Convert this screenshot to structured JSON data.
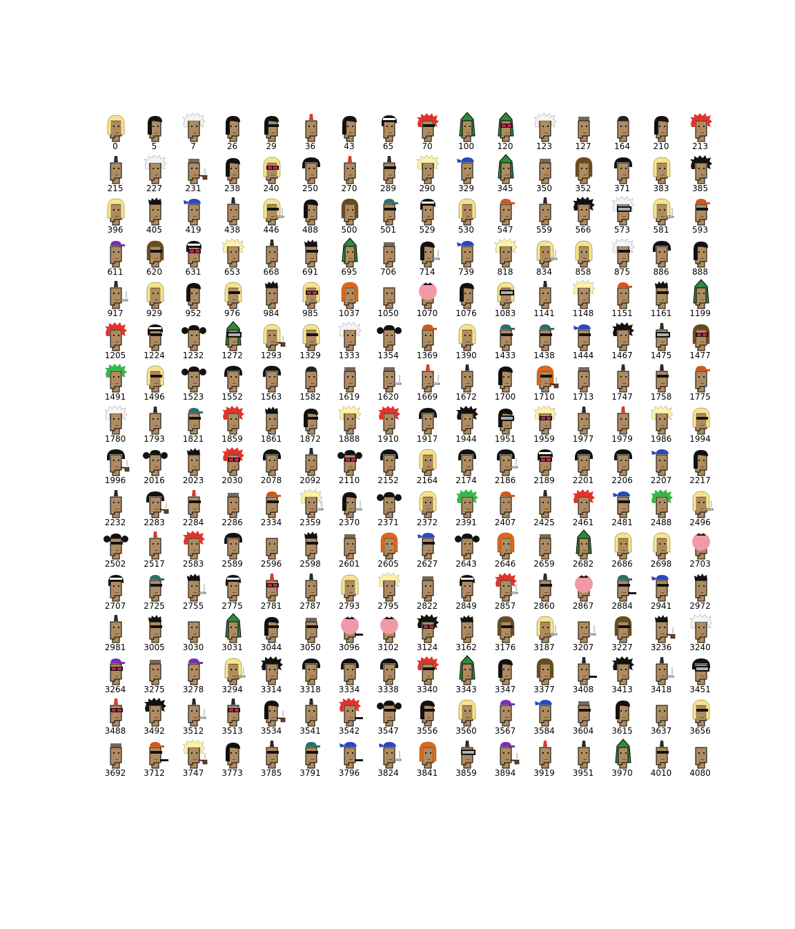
{
  "colors": {
    "skin": "#ae8b61",
    "outline": "#000000"
  },
  "items": [
    {
      "id": "0",
      "hair": "blonde-bob"
    },
    {
      "id": "5",
      "hair": "straight-black"
    },
    {
      "id": "7",
      "hair": "wild-white"
    },
    {
      "id": "26",
      "hair": "straight-black"
    },
    {
      "id": "29",
      "hair": "straight-black",
      "eyes": "shades"
    },
    {
      "id": "36",
      "hair": "mohawk-red"
    },
    {
      "id": "43",
      "hair": "straight-black"
    },
    {
      "id": "65",
      "hair": "black-bandana"
    },
    {
      "id": "70",
      "hair": "crazy-red",
      "eyes": "shades"
    },
    {
      "id": "100",
      "hair": "green-hood"
    },
    {
      "id": "120",
      "hair": "green-hood",
      "eyes": "3d"
    },
    {
      "id": "123",
      "hair": "wild-white"
    },
    {
      "id": "127",
      "hair": "cropped"
    },
    {
      "id": "164",
      "hair": "vr"
    },
    {
      "id": "210",
      "hair": "straight-black"
    },
    {
      "id": "213",
      "hair": "crazy-red"
    },
    {
      "id": "215",
      "hair": "mohawk"
    },
    {
      "id": "227",
      "hair": "wild-white"
    },
    {
      "id": "231",
      "hair": "cropped",
      "mouth": "pipe"
    },
    {
      "id": "238",
      "hair": "straight-black"
    },
    {
      "id": "240",
      "hair": "blonde-bob",
      "eyes": "3d"
    },
    {
      "id": "250",
      "hair": "frumpy-black"
    },
    {
      "id": "270",
      "hair": "mohawk-red"
    },
    {
      "id": "289",
      "hair": "mohawk",
      "eyes": "shades"
    },
    {
      "id": "290",
      "hair": "wild-blonde"
    },
    {
      "id": "329",
      "hair": "blue-bandana"
    },
    {
      "id": "345",
      "hair": "green-hood"
    },
    {
      "id": "350",
      "hair": "cropped"
    },
    {
      "id": "352",
      "hair": "brown-straight"
    },
    {
      "id": "371",
      "hair": "frumpy-black"
    },
    {
      "id": "383",
      "hair": "blonde-bob"
    },
    {
      "id": "385",
      "hair": "crazy-black"
    },
    {
      "id": "396",
      "hair": "blonde-bob"
    },
    {
      "id": "405",
      "hair": "messy-black"
    },
    {
      "id": "419",
      "hair": "blue-bandana"
    },
    {
      "id": "438",
      "hair": "mohawk"
    },
    {
      "id": "446",
      "hair": "blonde-bob",
      "eyes": "shades",
      "mouth": "cig"
    },
    {
      "id": "488",
      "hair": "straight-black"
    },
    {
      "id": "500",
      "hair": "brown-straight"
    },
    {
      "id": "501",
      "hair": "cap",
      "eyes": "shades"
    },
    {
      "id": "529",
      "hair": "black-bandana"
    },
    {
      "id": "530",
      "hair": "blonde-bob"
    },
    {
      "id": "547",
      "hair": "orange-cap"
    },
    {
      "id": "559",
      "hair": "mohawk"
    },
    {
      "id": "566",
      "hair": "crazy-black"
    },
    {
      "id": "573",
      "hair": "wild-white",
      "eyes": "vr"
    },
    {
      "id": "581",
      "hair": "blonde-bob",
      "mouth": "cig"
    },
    {
      "id": "593",
      "hair": "orange-cap",
      "eyes": "shades"
    },
    {
      "id": "611",
      "hair": "purple-cap"
    },
    {
      "id": "620",
      "hair": "brown-straight",
      "eyes": "shades"
    },
    {
      "id": "631",
      "hair": "black-bandana",
      "eyes": "3d"
    },
    {
      "id": "653",
      "hair": "wild-blonde"
    },
    {
      "id": "668",
      "hair": "mohawk"
    },
    {
      "id": "691",
      "hair": "messy-black",
      "eyes": "shades"
    },
    {
      "id": "695",
      "hair": "green-hood"
    },
    {
      "id": "706",
      "hair": "cropped"
    },
    {
      "id": "714",
      "hair": "straight-black",
      "mouth": "cig"
    },
    {
      "id": "739",
      "hair": "blue-bandana"
    },
    {
      "id": "818",
      "hair": "wild-blonde"
    },
    {
      "id": "834",
      "hair": "blonde-bob",
      "mouth": "cig"
    },
    {
      "id": "858",
      "hair": "blonde-bob"
    },
    {
      "id": "875",
      "hair": "wild-white",
      "eyes": "shades"
    },
    {
      "id": "886",
      "hair": "frumpy-black"
    },
    {
      "id": "888",
      "hair": "straight-black"
    },
    {
      "id": "917",
      "hair": "mohawk",
      "mouth": "cig"
    },
    {
      "id": "929",
      "hair": "blonde-bob"
    },
    {
      "id": "952",
      "hair": "straight-black"
    },
    {
      "id": "976",
      "hair": "blonde-bob",
      "eyes": "shades"
    },
    {
      "id": "984",
      "hair": "messy-black"
    },
    {
      "id": "985",
      "hair": "blonde-bob",
      "eyes": "3d"
    },
    {
      "id": "1037",
      "hair": "orange-long"
    },
    {
      "id": "1050",
      "hair": "none"
    },
    {
      "id": "1070",
      "hair": "pink-cap"
    },
    {
      "id": "1076",
      "hair": "straight-black"
    },
    {
      "id": "1083",
      "hair": "blonde-bob",
      "eyes": "vr"
    },
    {
      "id": "1141",
      "hair": "mohawk"
    },
    {
      "id": "1148",
      "hair": "wild-blonde"
    },
    {
      "id": "1151",
      "hair": "orange-cap"
    },
    {
      "id": "1161",
      "hair": "messy-black",
      "eyes": "shades"
    },
    {
      "id": "1199",
      "hair": "green-hood"
    },
    {
      "id": "1205",
      "hair": "crazy-red"
    },
    {
      "id": "1224",
      "hair": "black-bandana",
      "eyes": "shades"
    },
    {
      "id": "1232",
      "hair": "pigtails"
    },
    {
      "id": "1272",
      "hair": "green-hood",
      "eyes": "vr"
    },
    {
      "id": "1293",
      "hair": "blonde-bob",
      "mouth": "pipe"
    },
    {
      "id": "1329",
      "hair": "blonde-bob",
      "eyes": "shades"
    },
    {
      "id": "1333",
      "hair": "wild-white"
    },
    {
      "id": "1354",
      "hair": "pigtails"
    },
    {
      "id": "1369",
      "hair": "orange-cap"
    },
    {
      "id": "1390",
      "hair": "blonde-bob"
    },
    {
      "id": "1433",
      "hair": "cap",
      "eyes": "shades"
    },
    {
      "id": "1438",
      "hair": "cap",
      "eyes": "shades"
    },
    {
      "id": "1444",
      "hair": "blue-bandana",
      "eyes": "shades"
    },
    {
      "id": "1467",
      "hair": "crazy-black"
    },
    {
      "id": "1475",
      "hair": "mohawk",
      "eyes": "vr"
    },
    {
      "id": "1477",
      "hair": "brown-straight",
      "eyes": "3d"
    },
    {
      "id": "1491",
      "hair": "green-afro"
    },
    {
      "id": "1496",
      "hair": "blonde-bob",
      "eyes": "shades"
    },
    {
      "id": "1523",
      "hair": "pigtails"
    },
    {
      "id": "1552",
      "hair": "frumpy-black"
    },
    {
      "id": "1563",
      "hair": "frumpy-black"
    },
    {
      "id": "1582",
      "hair": "vr"
    },
    {
      "id": "1619",
      "hair": "cropped"
    },
    {
      "id": "1620",
      "hair": "cropped",
      "mouth": "cig"
    },
    {
      "id": "1669",
      "hair": "mohawk-red",
      "mouth": "cig"
    },
    {
      "id": "1672",
      "hair": "mohawk"
    },
    {
      "id": "1700",
      "hair": "straight-black"
    },
    {
      "id": "1710",
      "hair": "orange-long",
      "eyes": "shades",
      "mouth": "pipe"
    },
    {
      "id": "1713",
      "hair": "cropped"
    },
    {
      "id": "1747",
      "hair": "mohawk"
    },
    {
      "id": "1758",
      "hair": "mohawk",
      "eyes": "shades"
    },
    {
      "id": "1775",
      "hair": "orange-cap"
    },
    {
      "id": "1780",
      "hair": "wild-white"
    },
    {
      "id": "1793",
      "hair": "mohawk"
    },
    {
      "id": "1821",
      "hair": "cap",
      "eyes": "shades"
    },
    {
      "id": "1859",
      "hair": "crazy-red"
    },
    {
      "id": "1861",
      "hair": "messy-black"
    },
    {
      "id": "1872",
      "hair": "straight-black",
      "eyes": "shades"
    },
    {
      "id": "1888",
      "hair": "wild-blonde"
    },
    {
      "id": "1910",
      "hair": "crazy-red"
    },
    {
      "id": "1917",
      "hair": "frumpy-black"
    },
    {
      "id": "1944",
      "hair": "crazy-black"
    },
    {
      "id": "1951",
      "hair": "straight-black",
      "eyes": "vr"
    },
    {
      "id": "1959",
      "hair": "wild-blonde",
      "eyes": "3d"
    },
    {
      "id": "1977",
      "hair": "mohawk"
    },
    {
      "id": "1979",
      "hair": "mohawk-red"
    },
    {
      "id": "1986",
      "hair": "wild-blonde"
    },
    {
      "id": "1994",
      "hair": "blonde-bob",
      "eyes": "shades"
    },
    {
      "id": "1996",
      "hair": "frumpy-black",
      "mouth": "pipe"
    },
    {
      "id": "2016",
      "hair": "pigtails"
    },
    {
      "id": "2023",
      "hair": "messy-black"
    },
    {
      "id": "2030",
      "hair": "crazy-red",
      "eyes": "3d"
    },
    {
      "id": "2078",
      "hair": "frumpy-black"
    },
    {
      "id": "2092",
      "hair": "mohawk"
    },
    {
      "id": "2110",
      "hair": "pigtails",
      "eyes": "3d"
    },
    {
      "id": "2152",
      "hair": "frumpy-black"
    },
    {
      "id": "2164",
      "hair": "blonde-bob"
    },
    {
      "id": "2174",
      "hair": "frumpy-black"
    },
    {
      "id": "2186",
      "hair": "frumpy-black",
      "mouth": "cig"
    },
    {
      "id": "2189",
      "hair": "black-bandana",
      "eyes": "3d"
    },
    {
      "id": "2201",
      "hair": "frumpy-black"
    },
    {
      "id": "2206",
      "hair": "frumpy-black"
    },
    {
      "id": "2207",
      "hair": "blue-bandana"
    },
    {
      "id": "2217",
      "hair": "straight-black"
    },
    {
      "id": "2232",
      "hair": "mohawk"
    },
    {
      "id": "2283",
      "hair": "frumpy-black",
      "mouth": "pipe"
    },
    {
      "id": "2284",
      "hair": "mohawk-red",
      "eyes": "shades"
    },
    {
      "id": "2286",
      "hair": "cropped"
    },
    {
      "id": "2334",
      "hair": "orange-cap",
      "eyes": "shades"
    },
    {
      "id": "2359",
      "hair": "wild-blonde",
      "mouth": "cig"
    },
    {
      "id": "2370",
      "hair": "straight-black",
      "mouth": "cig"
    },
    {
      "id": "2371",
      "hair": "pigtails"
    },
    {
      "id": "2372",
      "hair": "blonde-bob"
    },
    {
      "id": "2391",
      "hair": "green-afro"
    },
    {
      "id": "2407",
      "hair": "orange-cap"
    },
    {
      "id": "2425",
      "hair": "mohawk"
    },
    {
      "id": "2461",
      "hair": "crazy-red"
    },
    {
      "id": "2481",
      "hair": "blue-bandana",
      "eyes": "shades"
    },
    {
      "id": "2488",
      "hair": "green-afro"
    },
    {
      "id": "2496",
      "hair": "blonde-bob",
      "mouth": "cig"
    },
    {
      "id": "2502",
      "hair": "pigtails",
      "eyes": "shades"
    },
    {
      "id": "2517",
      "hair": "mohawk-red"
    },
    {
      "id": "2583",
      "hair": "crazy-red"
    },
    {
      "id": "2589",
      "hair": "frumpy-black"
    },
    {
      "id": "2596",
      "hair": "none"
    },
    {
      "id": "2598",
      "hair": "messy-black",
      "eyes": "shades"
    },
    {
      "id": "2601",
      "hair": "cropped"
    },
    {
      "id": "2605",
      "hair": "orange-long"
    },
    {
      "id": "2627",
      "hair": "blue-bandana",
      "eyes": "shades"
    },
    {
      "id": "2643",
      "hair": "pigtails"
    },
    {
      "id": "2646",
      "hair": "orange-long"
    },
    {
      "id": "2659",
      "hair": "cropped"
    },
    {
      "id": "2682",
      "hair": "green-hood"
    },
    {
      "id": "2686",
      "hair": "blonde-bob"
    },
    {
      "id": "2698",
      "hair": "blonde-bob"
    },
    {
      "id": "2703",
      "hair": "pink-cap"
    },
    {
      "id": "2707",
      "hair": "black-bandana"
    },
    {
      "id": "2725",
      "hair": "cap",
      "eyes": "shades"
    },
    {
      "id": "2755",
      "hair": "messy-black",
      "mouth": "cig"
    },
    {
      "id": "2775",
      "hair": "black-bandana"
    },
    {
      "id": "2781",
      "hair": "mohawk-red",
      "eyes": "3d"
    },
    {
      "id": "2787",
      "hair": "mohawk"
    },
    {
      "id": "2793",
      "hair": "blonde-bob"
    },
    {
      "id": "2795",
      "hair": "wild-blonde"
    },
    {
      "id": "2822",
      "hair": "cropped"
    },
    {
      "id": "2849",
      "hair": "black-bandana"
    },
    {
      "id": "2857",
      "hair": "crazy-red",
      "mouth": "cig"
    },
    {
      "id": "2860",
      "hair": "mohawk",
      "eyes": "shades"
    },
    {
      "id": "2867",
      "hair": "pink-cap"
    },
    {
      "id": "2884",
      "hair": "cap",
      "eyes": "shades",
      "mouth": "vape"
    },
    {
      "id": "2941",
      "hair": "blue-bandana",
      "eyes": "shades"
    },
    {
      "id": "2972",
      "hair": "messy-black"
    },
    {
      "id": "2981",
      "hair": "mohawk"
    },
    {
      "id": "3005",
      "hair": "messy-black",
      "eyes": "shades"
    },
    {
      "id": "3030",
      "hair": "none"
    },
    {
      "id": "3031",
      "hair": "green-hood"
    },
    {
      "id": "3044",
      "hair": "straight-black",
      "eyes": "shades"
    },
    {
      "id": "3050",
      "hair": "cropped",
      "eyes": "shades"
    },
    {
      "id": "3096",
      "hair": "pink-cap",
      "mouth": "vape"
    },
    {
      "id": "3102",
      "hair": "pink-cap"
    },
    {
      "id": "3124",
      "hair": "crazy-black",
      "eyes": "3d"
    },
    {
      "id": "3162",
      "hair": "messy-black"
    },
    {
      "id": "3176",
      "hair": "brown-straight",
      "eyes": "shades"
    },
    {
      "id": "3187",
      "hair": "blonde-bob",
      "mouth": "cig"
    },
    {
      "id": "3207",
      "hair": "none",
      "mouth": "cig"
    },
    {
      "id": "3227",
      "hair": "brown-straight",
      "eyes": "shades"
    },
    {
      "id": "3236",
      "hair": "messy-black",
      "mouth": "pipe"
    },
    {
      "id": "3240",
      "hair": "wild-white"
    },
    {
      "id": "3264",
      "hair": "purple-cap",
      "eyes": "3d"
    },
    {
      "id": "3275",
      "hair": "cropped"
    },
    {
      "id": "3278",
      "hair": "purple-cap"
    },
    {
      "id": "3294",
      "hair": "blonde-bob",
      "mouth": "cig"
    },
    {
      "id": "3314",
      "hair": "crazy-black"
    },
    {
      "id": "3318",
      "hair": "frumpy-black"
    },
    {
      "id": "3334",
      "hair": "frumpy-black"
    },
    {
      "id": "3338",
      "hair": "frumpy-black"
    },
    {
      "id": "3340",
      "hair": "crazy-red",
      "eyes": "shades"
    },
    {
      "id": "3343",
      "hair": "green-hood"
    },
    {
      "id": "3347",
      "hair": "straight-black"
    },
    {
      "id": "3377",
      "hair": "brown-straight"
    },
    {
      "id": "3408",
      "hair": "mohawk",
      "mouth": "vape"
    },
    {
      "id": "3413",
      "hair": "crazy-black"
    },
    {
      "id": "3418",
      "hair": "mohawk",
      "mouth": "cig"
    },
    {
      "id": "3451",
      "hair": "frumpy-black",
      "eyes": "vr"
    },
    {
      "id": "3488",
      "hair": "mohawk-red",
      "eyes": "3d"
    },
    {
      "id": "3492",
      "hair": "crazy-black"
    },
    {
      "id": "3512",
      "hair": "mohawk",
      "mouth": "cig"
    },
    {
      "id": "3513",
      "hair": "mohawk",
      "eyes": "3d"
    },
    {
      "id": "3534",
      "hair": "straight-black",
      "mouth": "pipe"
    },
    {
      "id": "3541",
      "hair": "mohawk"
    },
    {
      "id": "3542",
      "hair": "crazy-red",
      "mouth": "vape"
    },
    {
      "id": "3547",
      "hair": "pigtails",
      "eyes": "shades"
    },
    {
      "id": "3556",
      "hair": "straight-black",
      "eyes": "shades"
    },
    {
      "id": "3560",
      "hair": "blonde-bob"
    },
    {
      "id": "3567",
      "hair": "purple-cap"
    },
    {
      "id": "3584",
      "hair": "blue-bandana"
    },
    {
      "id": "3604",
      "hair": "cropped",
      "eyes": "shades"
    },
    {
      "id": "3615",
      "hair": "straight-black"
    },
    {
      "id": "3637",
      "hair": "none"
    },
    {
      "id": "3656",
      "hair": "blonde-bob",
      "eyes": "shades"
    },
    {
      "id": "3692",
      "hair": "cropped"
    },
    {
      "id": "3712",
      "hair": "orange-cap",
      "eyes": "shades",
      "mouth": "vape"
    },
    {
      "id": "3747",
      "hair": "wild-blonde",
      "mouth": "pipe"
    },
    {
      "id": "3773",
      "hair": "straight-black"
    },
    {
      "id": "3785",
      "hair": "mohawk",
      "eyes": "shades"
    },
    {
      "id": "3791",
      "hair": "cap",
      "eyes": "shades"
    },
    {
      "id": "3796",
      "hair": "blue-bandana",
      "mouth": "vape"
    },
    {
      "id": "3824",
      "hair": "blue-bandana",
      "mouth": "cig"
    },
    {
      "id": "3841",
      "hair": "orange-long"
    },
    {
      "id": "3859",
      "hair": "mohawk",
      "eyes": "vr"
    },
    {
      "id": "3894",
      "hair": "purple-cap",
      "mouth": "pipe"
    },
    {
      "id": "3919",
      "hair": "mohawk-red"
    },
    {
      "id": "3951",
      "hair": "mohawk"
    },
    {
      "id": "3970",
      "hair": "green-hood"
    },
    {
      "id": "4010",
      "hair": "mohawk",
      "eyes": "shades"
    },
    {
      "id": "4080",
      "hair": "none"
    }
  ]
}
